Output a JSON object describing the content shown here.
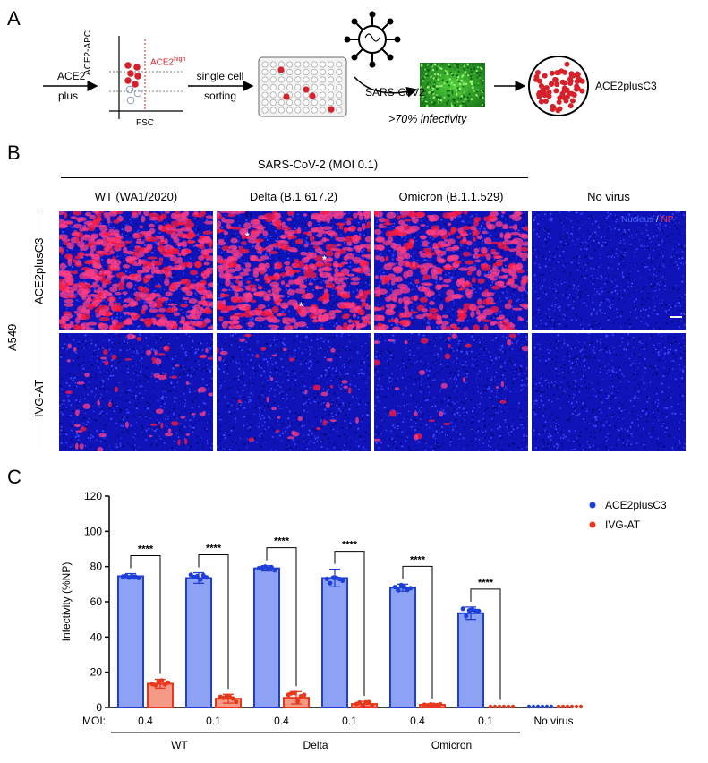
{
  "panel_a": {
    "letter": "A",
    "ace2_label": "ACE2",
    "plus_label": "plus",
    "y_axis": "ACE2-APC",
    "x_axis": "FSC",
    "gate_label": "ACE2",
    "gate_superscript": "high",
    "single_cell": "single cell",
    "sorting": "sorting",
    "virus": "SARS-CoV2",
    "infectivity": ">70% infectivity",
    "clone": "ACE2plusC3"
  },
  "panel_b": {
    "letter": "B",
    "header": "SARS-CoV-2 (MOI 0.1)",
    "columns": [
      "WT (WA1/2020)",
      "Delta (B.1.617.2)",
      "Omicron (B.1.1.529)",
      "No virus"
    ],
    "rows": [
      "ACE2plusC3",
      "IVG-AT"
    ],
    "cell_line": "A549",
    "legend_nucleus": "Nucleus",
    "legend_slash": " / ",
    "legend_np": "NP",
    "colors": {
      "nucleus": "#1f2bd6",
      "np": "#ff2a5a"
    }
  },
  "panel_c": {
    "letter": "C",
    "moi_label": "MOI:",
    "sig": "****"
  },
  "chart_data": {
    "type": "bar",
    "ylabel": "Infectivity (%NP)",
    "ylim": [
      0,
      120
    ],
    "yticks": [
      "0",
      "20",
      "40",
      "60",
      "80",
      "100",
      "120"
    ],
    "moi_labels": [
      "0.4",
      "0.1",
      "0.4",
      "0.1",
      "0.4",
      "0.1",
      "No virus"
    ],
    "groups": [
      "WT",
      "Delta",
      "Omicron"
    ],
    "series": [
      {
        "name": "ACE2plusC3",
        "color": "#1f3fdc",
        "fill": "#8ea2f5",
        "values": [
          74.5,
          73.5,
          79,
          73.5,
          68,
          53.5,
          0.3
        ],
        "errors": [
          1.5,
          3,
          1.5,
          5,
          2,
          3.5,
          0
        ]
      },
      {
        "name": "IVG-AT",
        "color": "#e8381b",
        "fill": "#f59a86",
        "values": [
          13.5,
          5,
          5.5,
          2,
          1.5,
          1,
          0.3
        ],
        "errors": [
          2.5,
          2.5,
          3.5,
          1.5,
          0.5,
          0.3,
          0
        ]
      }
    ],
    "legend_position": "top-right"
  }
}
